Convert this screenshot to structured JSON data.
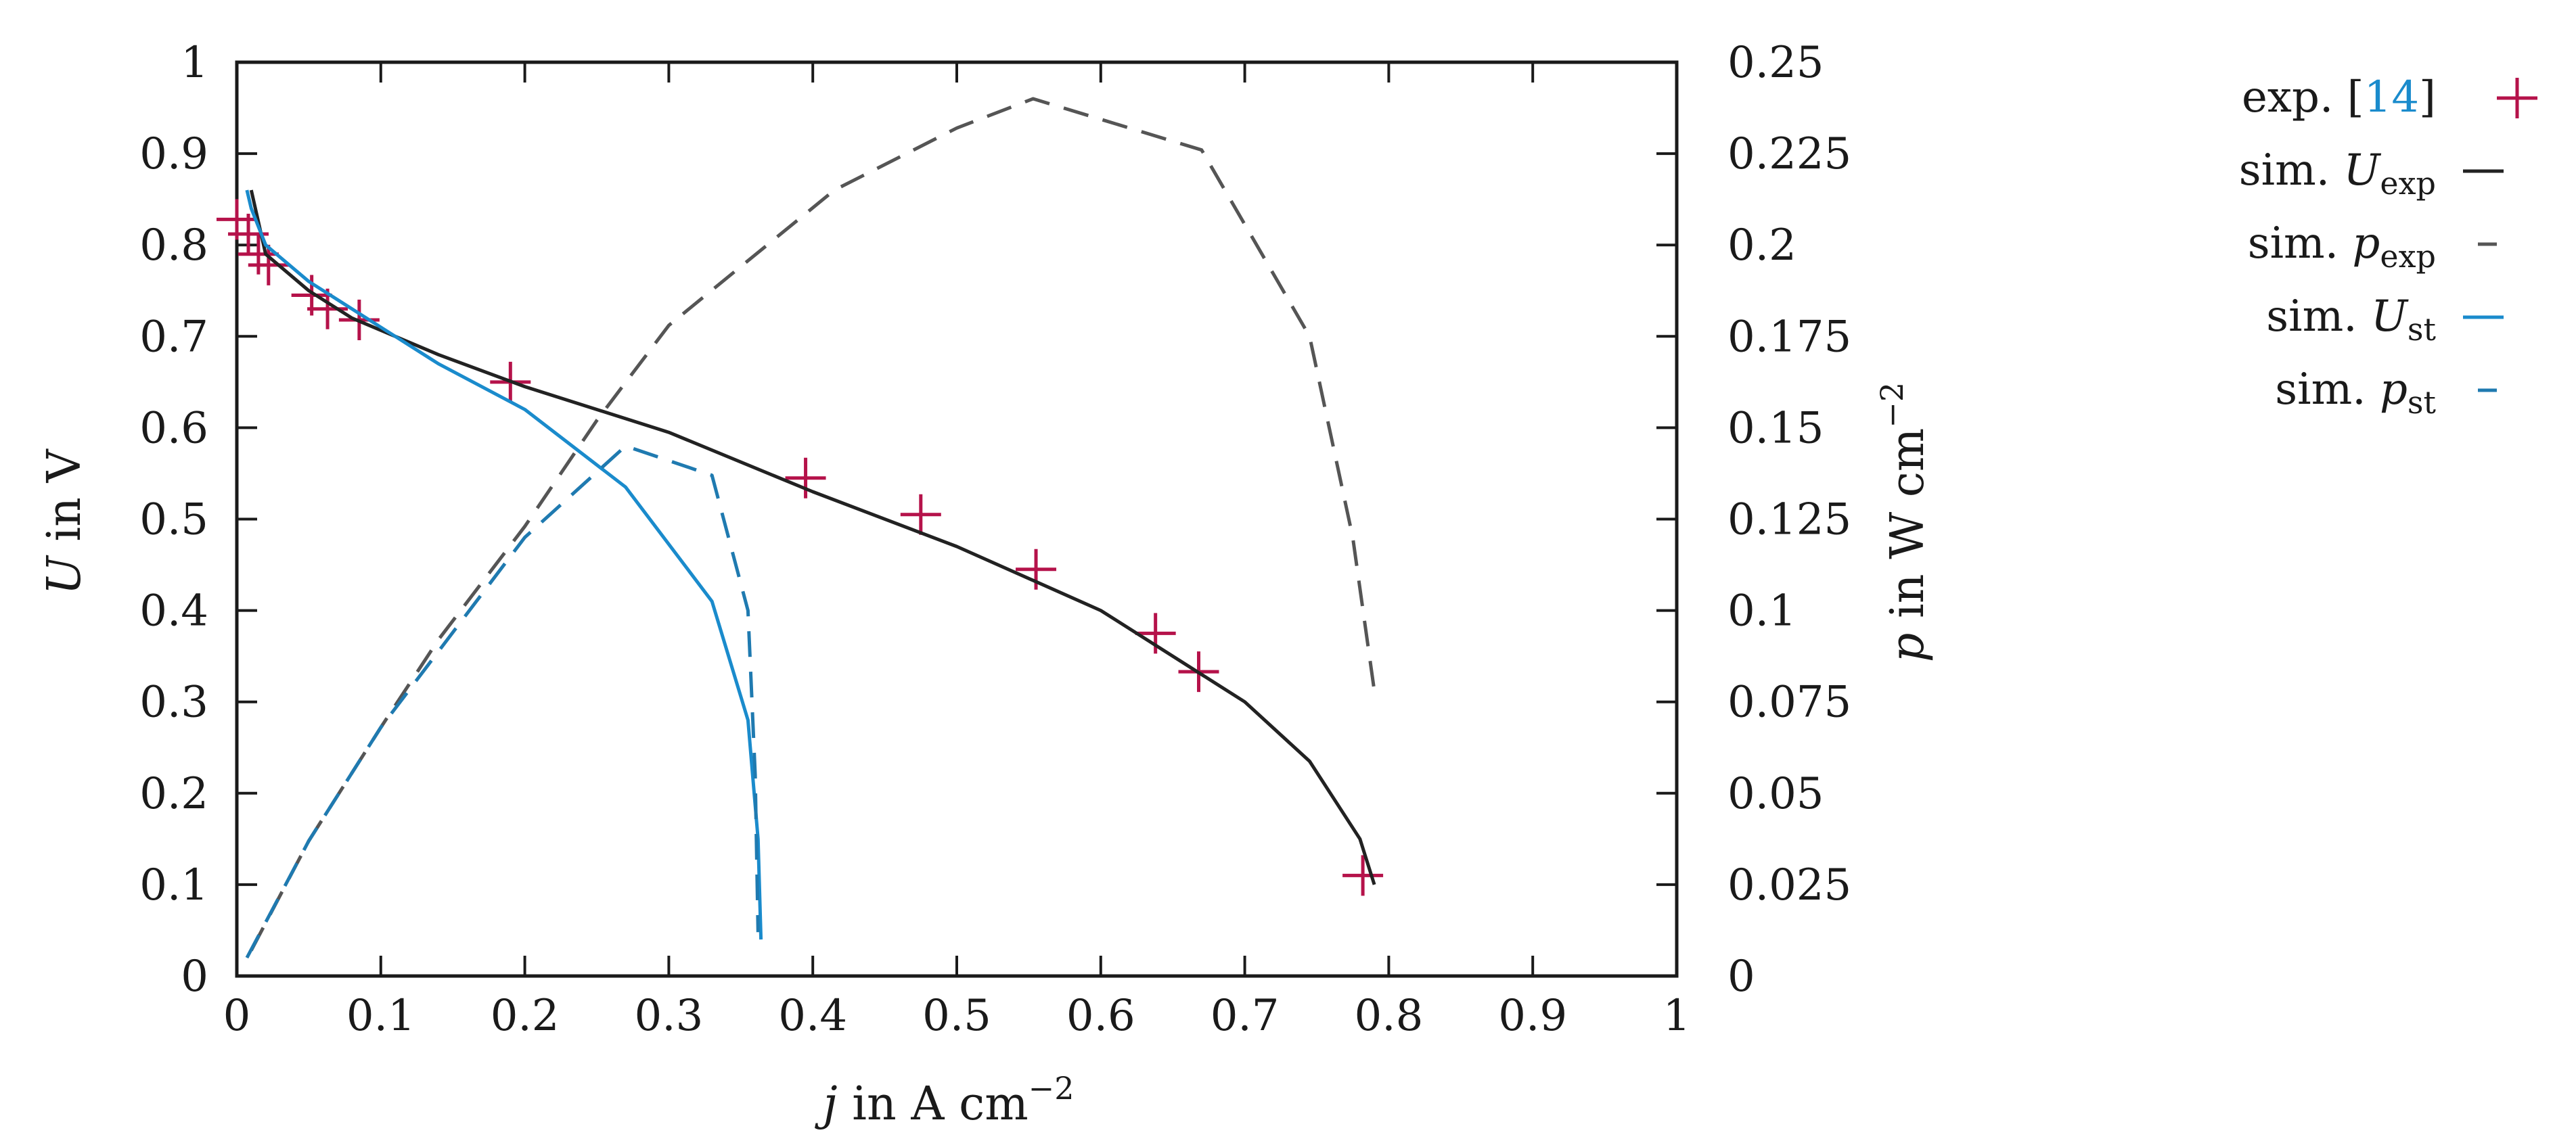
{
  "chart_data": {
    "type": "line",
    "title": "",
    "xlabel": {
      "italic": "j",
      "text": " in A cm",
      "sup": "−2"
    },
    "ylabel": {
      "italic": "U",
      "text": " in V"
    },
    "y2label": {
      "italic": "p",
      "text": " in W cm",
      "sup": "−2"
    },
    "xlim": [
      0,
      1
    ],
    "ylim": [
      0,
      1
    ],
    "y2lim": [
      0,
      0.25
    ],
    "grid": false,
    "xticks": [
      "0",
      "0.1",
      "0.2",
      "0.3",
      "0.4",
      "0.5",
      "0.6",
      "0.7",
      "0.8",
      "0.9",
      "1"
    ],
    "yticks": [
      "0",
      "0.1",
      "0.2",
      "0.3",
      "0.4",
      "0.5",
      "0.6",
      "0.7",
      "0.8",
      "0.9",
      "1"
    ],
    "y2ticks": [
      "0",
      "0.025",
      "0.05",
      "0.075",
      "0.1",
      "0.125",
      "0.15",
      "0.175",
      "0.2",
      "0.225",
      "0.25"
    ],
    "legend_position": "outside-right",
    "series": [
      {
        "name": "exp. [14]",
        "label_main": "exp. [",
        "label_ref": "14",
        "label_close": "]",
        "kind": "markers",
        "marker": "plus",
        "axis": "left",
        "color": "#b5124a",
        "x": [
          0.0,
          0.008,
          0.015,
          0.022,
          0.052,
          0.063,
          0.085,
          0.19,
          0.395,
          0.475,
          0.555,
          0.638,
          0.668,
          0.782
        ],
        "y": [
          0.828,
          0.812,
          0.79,
          0.778,
          0.745,
          0.73,
          0.718,
          0.65,
          0.545,
          0.505,
          0.445,
          0.375,
          0.333,
          0.11
        ]
      },
      {
        "name": "sim. U_exp",
        "label_main": "sim. ",
        "label_italic": "U",
        "label_sub": "exp",
        "kind": "line",
        "dash": "solid",
        "axis": "left",
        "color": "#222222",
        "x": [
          0.01,
          0.02,
          0.05,
          0.08,
          0.14,
          0.2,
          0.3,
          0.4,
          0.5,
          0.6,
          0.7,
          0.745,
          0.78,
          0.79
        ],
        "y": [
          0.86,
          0.79,
          0.75,
          0.72,
          0.68,
          0.645,
          0.595,
          0.53,
          0.47,
          0.4,
          0.3,
          0.235,
          0.15,
          0.1
        ]
      },
      {
        "name": "sim. p_exp",
        "label_main": "sim. ",
        "label_italic": "p",
        "label_sub": "exp",
        "kind": "line",
        "dash": "dashed",
        "axis": "right",
        "color": "#555555",
        "x": [
          0.01,
          0.05,
          0.1,
          0.14,
          0.2,
          0.25,
          0.3,
          0.415,
          0.5,
          0.553,
          0.67,
          0.745,
          0.775,
          0.79
        ],
        "y": [
          0.007,
          0.037,
          0.068,
          0.092,
          0.123,
          0.152,
          0.178,
          0.215,
          0.232,
          0.24,
          0.226,
          0.175,
          0.12,
          0.078
        ]
      },
      {
        "name": "sim. U_st",
        "label_main": "sim. ",
        "label_italic": "U",
        "label_sub": "st",
        "kind": "line",
        "dash": "solid",
        "axis": "left",
        "color": "#1a8bcc",
        "x": [
          0.007,
          0.01,
          0.02,
          0.05,
          0.1,
          0.14,
          0.2,
          0.27,
          0.33,
          0.355,
          0.362,
          0.364
        ],
        "y": [
          0.86,
          0.84,
          0.8,
          0.76,
          0.71,
          0.67,
          0.62,
          0.535,
          0.41,
          0.28,
          0.15,
          0.04
        ]
      },
      {
        "name": "sim. p_st",
        "label_main": "sim. ",
        "label_italic": "p",
        "label_sub": "st",
        "kind": "line",
        "dash": "dashed",
        "axis": "right",
        "color": "#1f7ab0",
        "x": [
          0.007,
          0.05,
          0.1,
          0.15,
          0.2,
          0.27,
          0.33,
          0.355,
          0.36,
          0.362
        ],
        "y": [
          0.005,
          0.037,
          0.068,
          0.094,
          0.12,
          0.145,
          0.137,
          0.1,
          0.055,
          0.012
        ]
      }
    ]
  }
}
